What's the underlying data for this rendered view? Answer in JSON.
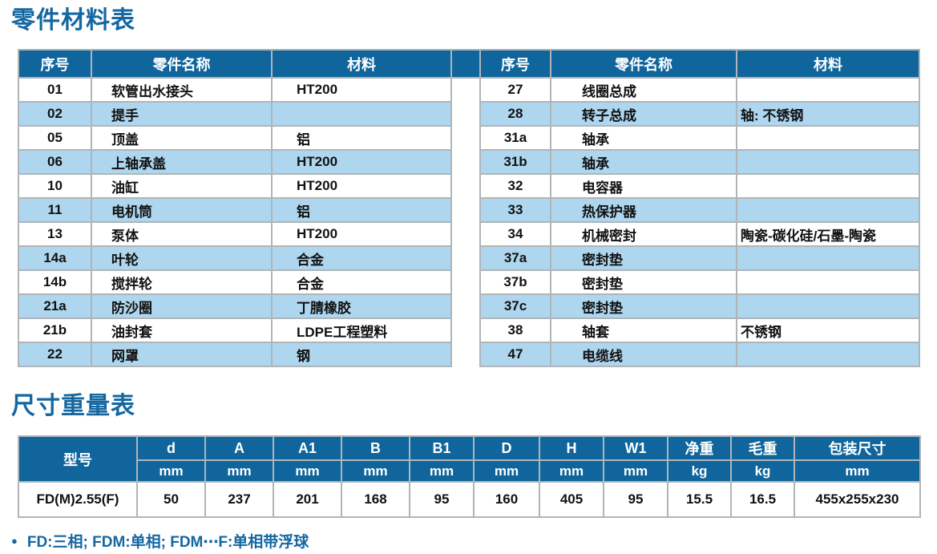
{
  "parts_section": {
    "title": "零件材料表"
  },
  "dims_section": {
    "title": "尺寸重量表"
  },
  "parts_table": {
    "headers": {
      "no": "序号",
      "name": "零件名称",
      "material": "材料"
    },
    "left_rows": [
      {
        "no": "01",
        "name": "软管出水接头",
        "material": "HT200"
      },
      {
        "no": "02",
        "name": "提手",
        "material": ""
      },
      {
        "no": "05",
        "name": "顶盖",
        "material": "铝"
      },
      {
        "no": "06",
        "name": "上轴承盖",
        "material": "HT200"
      },
      {
        "no": "10",
        "name": "油缸",
        "material": "HT200"
      },
      {
        "no": "11",
        "name": "电机筒",
        "material": "铝"
      },
      {
        "no": "13",
        "name": "泵体",
        "material": "HT200"
      },
      {
        "no": "14a",
        "name": "叶轮",
        "material": "合金"
      },
      {
        "no": "14b",
        "name": "搅拌轮",
        "material": "合金"
      },
      {
        "no": "21a",
        "name": "防沙圈",
        "material": "丁腈橡胶"
      },
      {
        "no": "21b",
        "name": "油封套",
        "material": "LDPE工程塑料"
      },
      {
        "no": "22",
        "name": "网罩",
        "material": "钢"
      }
    ],
    "right_rows": [
      {
        "no": "27",
        "name": "线圈总成",
        "material": ""
      },
      {
        "no": "28",
        "name": "转子总成",
        "material": "轴: 不锈钢"
      },
      {
        "no": "31a",
        "name": "轴承",
        "material": ""
      },
      {
        "no": "31b",
        "name": "轴承",
        "material": ""
      },
      {
        "no": "32",
        "name": "电容器",
        "material": ""
      },
      {
        "no": "33",
        "name": "热保护器",
        "material": ""
      },
      {
        "no": "34",
        "name": "机械密封",
        "material": "陶瓷-碳化硅/石墨-陶瓷"
      },
      {
        "no": "37a",
        "name": "密封垫",
        "material": ""
      },
      {
        "no": "37b",
        "name": "密封垫",
        "material": ""
      },
      {
        "no": "37c",
        "name": "密封垫",
        "material": ""
      },
      {
        "no": "38",
        "name": "轴套",
        "material": "不锈钢"
      },
      {
        "no": "47",
        "name": "电缆线",
        "material": ""
      }
    ]
  },
  "dims_table": {
    "model_header": "型号",
    "columns": [
      {
        "label": "d",
        "unit": "mm"
      },
      {
        "label": "A",
        "unit": "mm"
      },
      {
        "label": "A1",
        "unit": "mm"
      },
      {
        "label": "B",
        "unit": "mm"
      },
      {
        "label": "B1",
        "unit": "mm"
      },
      {
        "label": "D",
        "unit": "mm"
      },
      {
        "label": "H",
        "unit": "mm"
      },
      {
        "label": "W1",
        "unit": "mm"
      },
      {
        "label": "净重",
        "unit": "kg"
      },
      {
        "label": "毛重",
        "unit": "kg"
      },
      {
        "label": "包装尺寸",
        "unit": "mm"
      }
    ],
    "row": {
      "model": "FD(M)2.55(F)",
      "values": [
        "50",
        "237",
        "201",
        "168",
        "95",
        "160",
        "405",
        "95",
        "15.5",
        "16.5",
        "455x255x230"
      ]
    }
  },
  "footnote": {
    "bullet": "●",
    "text": "FD:三相; FDM:单相; FDM⋯F:单相带浮球"
  },
  "colors": {
    "header_blue": "#10659C",
    "alt_row_blue": "#AED6EE",
    "title_blue": "#1467A1",
    "border_gray": "#AFB5B9"
  }
}
